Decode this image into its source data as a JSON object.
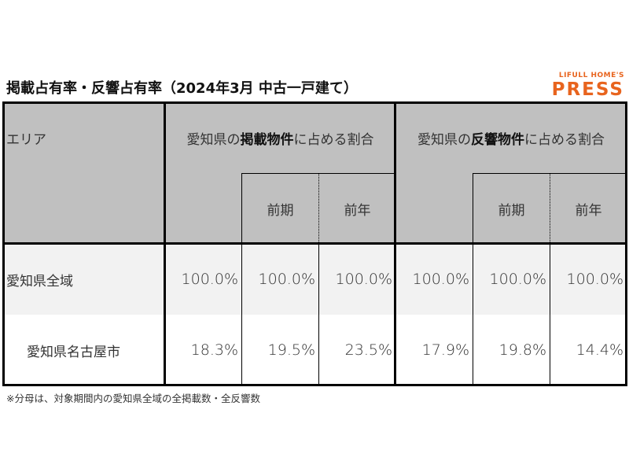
{
  "title": "掲載占有率・反響占有率（2024年3月 中古一戸建て）",
  "logo": {
    "line1": "LIFULL HOME'S",
    "line2": "PRESS",
    "color": "#e8641e"
  },
  "table": {
    "area_header": "エリア",
    "group1": {
      "prefix": "愛知県の",
      "bold": "掲載物件",
      "suffix": "に占める割合"
    },
    "group2": {
      "prefix": "愛知県の",
      "bold": "反響物件",
      "suffix": "に占める割合"
    },
    "sub_headers": [
      "前期",
      "前年"
    ],
    "rows": [
      {
        "area": "愛知県全域",
        "values": [
          "100.0%",
          "100.0%",
          "100.0%",
          "100.0%",
          "100.0%",
          "100.0%"
        ]
      },
      {
        "area": "愛知県名古屋市",
        "values": [
          "18.3%",
          "19.5%",
          "23.5%",
          "17.9%",
          "19.8%",
          "14.4%"
        ]
      }
    ],
    "header_bg": "#c0c0c0",
    "row1_bg": "#f2f2f2"
  },
  "footnote": "※分母は、対象期間内の愛知県全域の全掲載数・全反響数"
}
